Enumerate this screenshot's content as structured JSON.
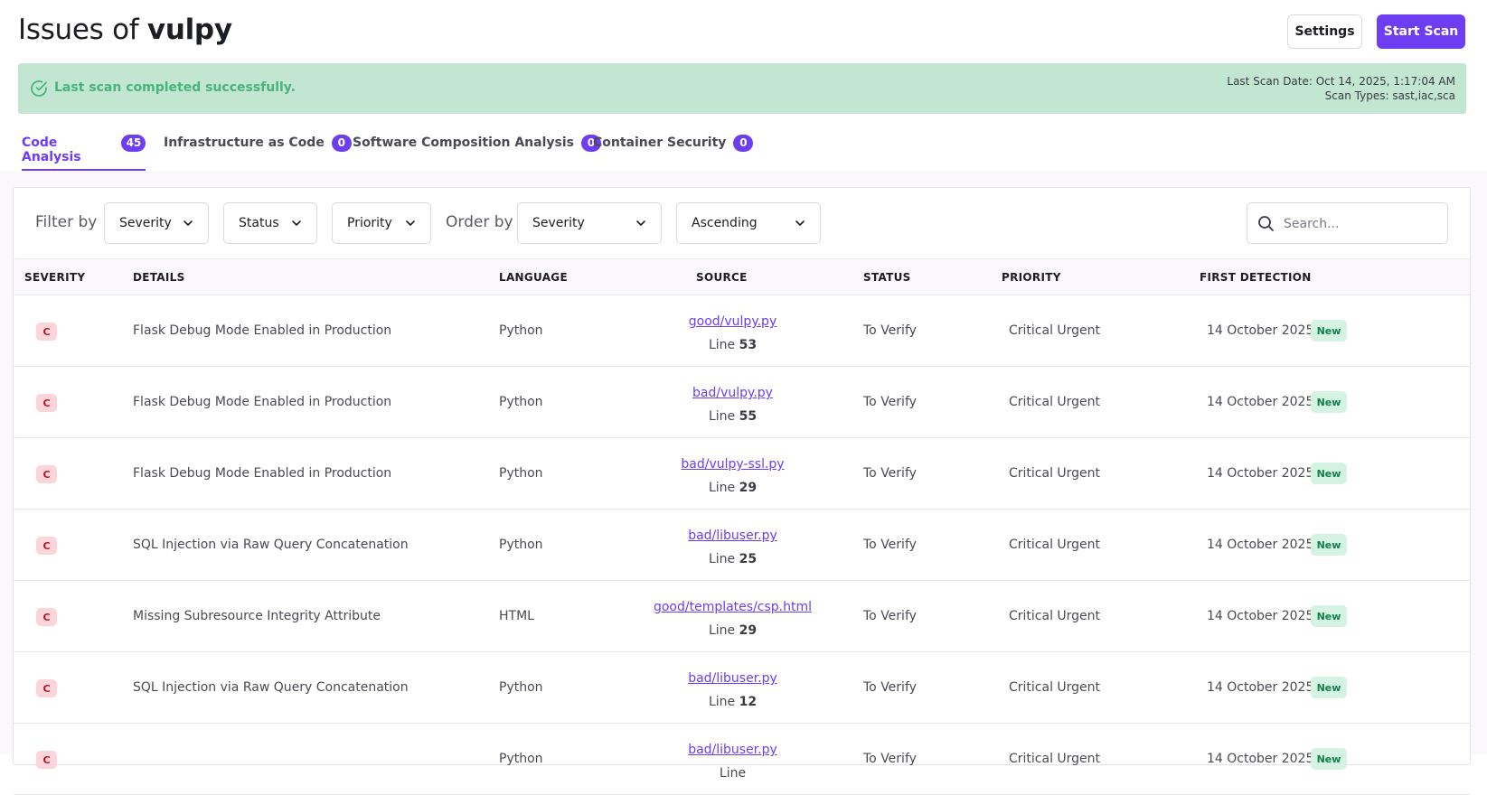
{
  "header": {
    "title_prefix": "Issues of",
    "project_name": "vulpy",
    "settings_label": "Settings",
    "start_scan_label": "Start Scan"
  },
  "alert": {
    "message": "Last scan completed successfully.",
    "last_scan_date": "Last Scan Date: Oct 14, 2025, 1:17:04 AM",
    "scan_types": "Scan Types: sast,iac,sca",
    "color": "#47b47a"
  },
  "tabs": [
    {
      "label": "Code Analysis",
      "count": "45",
      "active": true
    },
    {
      "label": "Infrastructure as Code",
      "count": "0",
      "active": false
    },
    {
      "label": "Software Composition Analysis",
      "count": "0",
      "active": false
    },
    {
      "label": "Container Security",
      "count": "0",
      "active": false
    }
  ],
  "filters": {
    "filter_by_label": "Filter by",
    "severity": "Severity",
    "status": "Status",
    "priority": "Priority",
    "order_by_label": "Order by",
    "order_field": "Severity",
    "order_direction": "Ascending",
    "search_placeholder": "Search..."
  },
  "table": {
    "columns": [
      "SEVERITY",
      "DETAILS",
      "LANGUAGE",
      "SOURCE",
      "STATUS",
      "PRIORITY",
      "FIRST DETECTION"
    ],
    "line_prefix": "Line",
    "rows": [
      {
        "severity": "C",
        "details": "Flask Debug Mode Enabled in Production",
        "language": "Python",
        "source": "good/vulpy.py",
        "line": "53",
        "status": "To Verify",
        "priority": "Critical Urgent",
        "first_detection": "14 October 2025",
        "badge": "New"
      },
      {
        "severity": "C",
        "details": "Flask Debug Mode Enabled in Production",
        "language": "Python",
        "source": "bad/vulpy.py",
        "line": "55",
        "status": "To Verify",
        "priority": "Critical Urgent",
        "first_detection": "14 October 2025",
        "badge": "New"
      },
      {
        "severity": "C",
        "details": "Flask Debug Mode Enabled in Production",
        "language": "Python",
        "source": "bad/vulpy-ssl.py",
        "line": "29",
        "status": "To Verify",
        "priority": "Critical Urgent",
        "first_detection": "14 October 2025",
        "badge": "New"
      },
      {
        "severity": "C",
        "details": "SQL Injection via Raw Query Concatenation",
        "language": "Python",
        "source": "bad/libuser.py",
        "line": "25",
        "status": "To Verify",
        "priority": "Critical Urgent",
        "first_detection": "14 October 2025",
        "badge": "New"
      },
      {
        "severity": "C",
        "details": "Missing Subresource Integrity Attribute",
        "language": "HTML",
        "source": "good/templates/csp.html",
        "line": "29",
        "status": "To Verify",
        "priority": "Critical Urgent",
        "first_detection": "14 October 2025",
        "badge": "New"
      },
      {
        "severity": "C",
        "details": "SQL Injection via Raw Query Concatenation",
        "language": "Python",
        "source": "bad/libuser.py",
        "line": "12",
        "status": "To Verify",
        "priority": "Critical Urgent",
        "first_detection": "14 October 2025",
        "badge": "New"
      },
      {
        "severity": "C",
        "details": "",
        "language": "Python",
        "source": "bad/libuser.py",
        "line": "",
        "status": "To Verify",
        "priority": "Critical Urgent",
        "first_detection": "14 October 2025",
        "badge": "New"
      }
    ]
  }
}
